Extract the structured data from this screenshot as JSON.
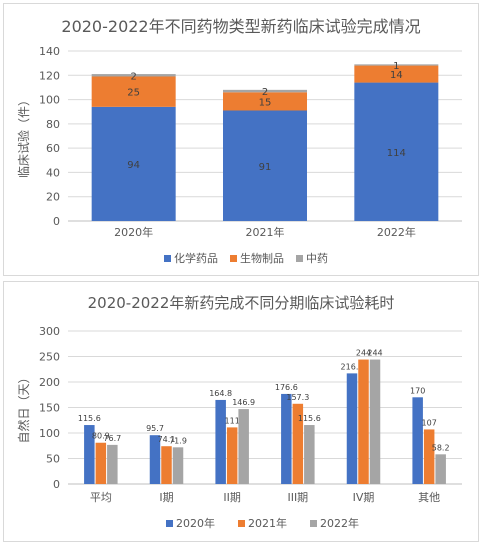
{
  "chart_data": [
    {
      "type": "bar",
      "stacked": true,
      "title": "2020-2022年不同药物类型新药临床试验完成情况",
      "ylabel": "临床试验（件）",
      "xlabel": "",
      "categories": [
        "2020年",
        "2021年",
        "2022年"
      ],
      "series": [
        {
          "name": "化学药品",
          "color": "#4472c4",
          "values": [
            94,
            91,
            114
          ],
          "labels": [
            "94",
            "91",
            "114"
          ]
        },
        {
          "name": "生物制品",
          "color": "#ed7d31",
          "values": [
            25,
            15,
            14
          ],
          "labels": [
            "25",
            "15",
            "14"
          ]
        },
        {
          "name": "中药",
          "color": "#a5a5a5",
          "values": [
            2,
            2,
            1
          ],
          "labels": [
            "2",
            "2",
            "1"
          ]
        }
      ],
      "ylim": [
        0,
        140
      ],
      "yticks": [
        "0",
        "20",
        "40",
        "60",
        "80",
        "100",
        "120",
        "140"
      ],
      "grid": true,
      "legend": "bottom"
    },
    {
      "type": "bar",
      "stacked": false,
      "title": "2020-2022年新药完成不同分期临床试验耗时",
      "ylabel": "自然日（天）",
      "xlabel": "",
      "categories": [
        "平均",
        "I期",
        "II期",
        "III期",
        "IV期",
        "其他"
      ],
      "series": [
        {
          "name": "2020年",
          "color": "#4472c4",
          "values": [
            115.6,
            95.7,
            164.8,
            176.6,
            216.9,
            170
          ],
          "labels": [
            "115.6",
            "95.7",
            "164.8",
            "176.6",
            "216.9",
            "170"
          ]
        },
        {
          "name": "2021年",
          "color": "#ed7d31",
          "values": [
            80.9,
            74.1,
            111,
            157.3,
            244,
            107
          ],
          "labels": [
            "80.9",
            "74.1",
            "111",
            "157.3",
            "244",
            "107"
          ]
        },
        {
          "name": "2022年",
          "color": "#a5a5a5",
          "values": [
            76.7,
            71.9,
            146.9,
            115.6,
            244,
            58.2
          ],
          "labels": [
            "76.7",
            "71.9",
            "146.9",
            "115.6",
            "244",
            "58.2"
          ]
        }
      ],
      "ylim": [
        0,
        300
      ],
      "yticks": [
        "0",
        "50",
        "100",
        "150",
        "200",
        "250",
        "300"
      ],
      "grid": true,
      "legend": "bottom"
    }
  ]
}
